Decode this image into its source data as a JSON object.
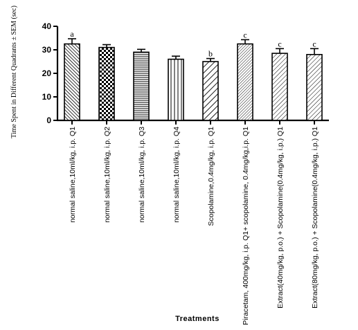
{
  "chart_data": {
    "type": "bar",
    "ylabel": "Time Spent in Different Quadrants ± SEM (sec)",
    "xlabel": "Treatments",
    "ylim": [
      0,
      40
    ],
    "yticks": [
      0,
      10,
      20,
      30,
      40
    ],
    "categories": [
      "normal saline,10ml/kg, i.p. Q1",
      "normal saline,10ml/kg, i.p. Q2",
      "normal saline,10ml/kg, i.p. Q3",
      "normal saline,10ml/kg, i.p. Q4",
      "Scopolamine,0.4mg/kg, i.p. Q1",
      "Piracetam, 400mg/kg, i.p. Q1+ scopolamine, 0.4mg/kg,i.p. Q1",
      "Extract(40mg/kg, p.o.) + Scopolamine(0.4mg/kg, i.p.) Q1",
      "Extract(80mg/kg, p.o.) + Scopolamine(0.4mg/kg, i.p.) Q1"
    ],
    "values": [
      32.5,
      31,
      29,
      26,
      25,
      32.5,
      28.5,
      28
    ],
    "errors": [
      2.2,
      1.2,
      1.2,
      1.3,
      1.3,
      1.8,
      2.0,
      2.5
    ],
    "annotations": [
      "a",
      "",
      "",
      "",
      "b",
      "c",
      "c",
      "c"
    ],
    "patterns": [
      "diag-dense",
      "checker",
      "horizontal",
      "vertical",
      "diag-wide",
      "diag-fine",
      "diag-sparse",
      "diag-sparse"
    ],
    "grid": false,
    "legend": "none"
  }
}
